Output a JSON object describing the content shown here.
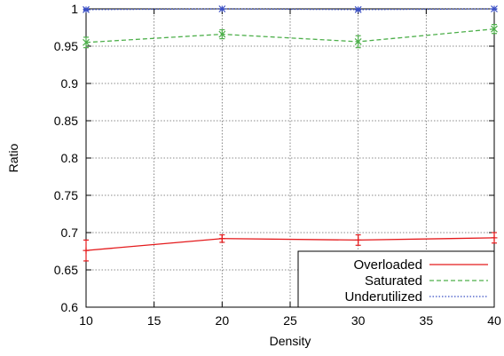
{
  "chart_data": {
    "type": "line",
    "xlabel": "Density",
    "ylabel": "Ratio",
    "xlim": [
      10,
      40
    ],
    "ylim": [
      0.6,
      1.0
    ],
    "xticks": [
      "10",
      "15",
      "20",
      "25",
      "30",
      "35",
      "40"
    ],
    "yticks": [
      "0.6",
      "0.65",
      "0.7",
      "0.75",
      "0.8",
      "0.85",
      "0.9",
      "0.95",
      "1"
    ],
    "grid": true,
    "legend_position": "bottom-right",
    "x": [
      10,
      20,
      30,
      40
    ],
    "series": [
      {
        "name": "Overloaded",
        "values": [
          0.676,
          0.692,
          0.69,
          0.693
        ],
        "errors": [
          0.014,
          0.005,
          0.007,
          0.007
        ],
        "color": "#e41a1c",
        "style": "solid",
        "marker": "plus"
      },
      {
        "name": "Saturated",
        "values": [
          0.955,
          0.966,
          0.956,
          0.973
        ],
        "errors": [
          0.007,
          0.006,
          0.008,
          0.006
        ],
        "color": "#4daf4a",
        "style": "dashed",
        "marker": "x"
      },
      {
        "name": "Underutilized",
        "values": [
          0.999,
          1.0,
          0.999,
          1.0
        ],
        "errors": [
          0.001,
          0.0005,
          0.001,
          0.0005
        ],
        "color": "#3a4fc4",
        "style": "dotted",
        "marker": "star"
      }
    ]
  }
}
